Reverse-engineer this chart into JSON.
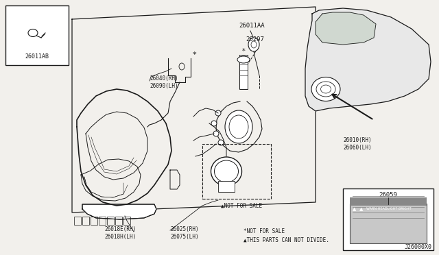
{
  "bg_color": "#f2f0ec",
  "white": "#ffffff",
  "line_color": "#1a1a1a",
  "gray_car": "#d0d0d0",
  "diagram_code": "J26000X0",
  "footnote1": "*NOT FOR SALE",
  "footnote2": "▲THIS PARTS CAN NOT DIVIDE.",
  "not_for_sale": "▲NOT FOR SALE",
  "label_26011AB": "26011AB",
  "label_26040": "26040(RH)\n26090(LH)",
  "label_26297": "26297",
  "label_26011AA": "26011AA",
  "label_26010": "26010(RH)\n26060(LH)",
  "label_26018E": "26018E(RH)\n26018H(LH)",
  "label_26025": "26025(RH)\n26075(LH)",
  "label_26059": "26059"
}
